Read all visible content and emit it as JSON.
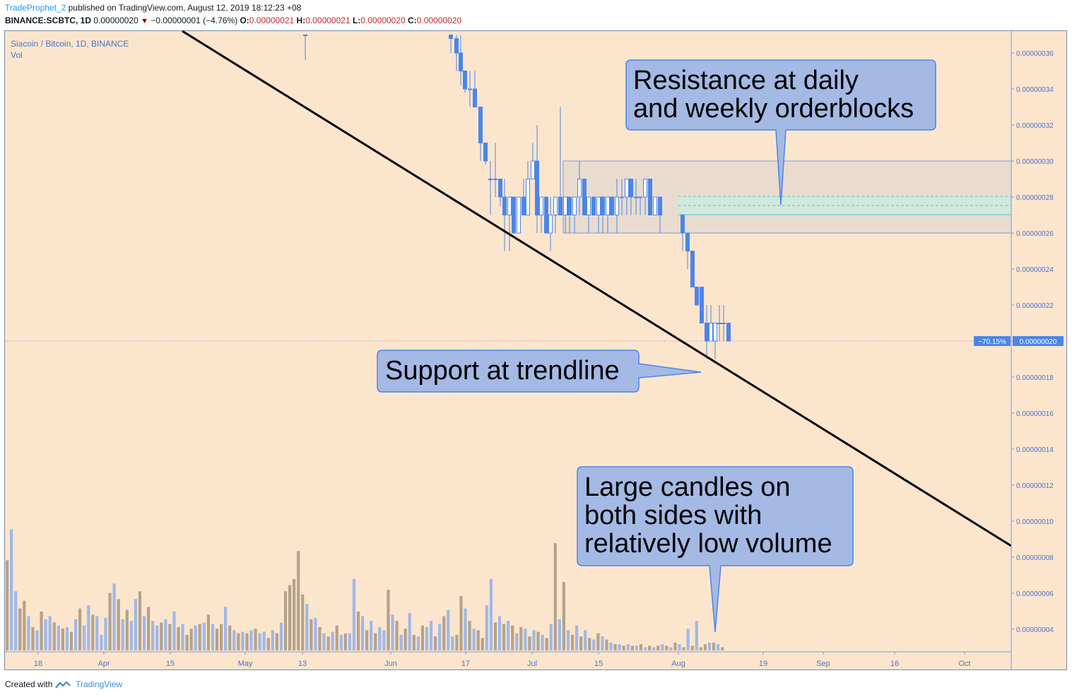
{
  "header": {
    "user": "TradeProphet_2",
    "published_text": "published on TradingView.com, August 12, 2019 18:12:23 +08",
    "symbol": "BINANCE:SCBTC, 1D",
    "last": "0.00000020",
    "change": "−0.00000001 (−4.76%)",
    "o_label": "O:",
    "o_value": "0.00000021",
    "h_label": "H:",
    "h_value": "0.00000021",
    "l_label": "L:",
    "l_value": "0.00000020",
    "c_label": "C:",
    "c_value": "0.00000020"
  },
  "legend": {
    "series": "Siacoin / Bitcoin, 1D, BINANCE",
    "volume": "Vol"
  },
  "footer": {
    "created_with": "Created with",
    "brand": "TradingView"
  },
  "colors": {
    "background": "#fce5cd",
    "bull_candle": "#ffffff",
    "bear_candle": "#4a86e8",
    "volume_up": "#9fb8e8",
    "volume_down": "#b4a28c",
    "trendline": "#000000",
    "callout_fill": "#a4b9e4",
    "callout_stroke": "#4a86e8",
    "zone_fill": "#e9dccf",
    "inner_zone_fill": "#d3e8dc"
  },
  "chart_data": {
    "type": "candlestick",
    "y_axis_ticks": [
      "0.00000036",
      "0.00000034",
      "0.00000032",
      "0.00000030",
      "0.00000028",
      "0.00000026",
      "0.00000024",
      "0.00000022",
      "0.00000020",
      "0.00000018",
      "0.00000016",
      "0.00000014",
      "0.00000012",
      "0.00000010",
      "0.00000008",
      "0.00000006",
      "0.00000004"
    ],
    "ylim": [
      3.3e-08,
      3.75e-07
    ],
    "x_axis_ticks": [
      "18",
      "Apr",
      "15",
      "May",
      "13",
      "Jun",
      "17",
      "Jul",
      "15",
      "Aug",
      "19",
      "Sep",
      "16",
      "Oct"
    ],
    "current_price_label": "0.00000020",
    "current_change_label": "−70.15%",
    "current_price": 2e-07,
    "candles": [
      {
        "d": "May 15",
        "o": 3.7e-07,
        "h": 3.7e-07,
        "l": 3.56e-07,
        "c": 3.7e-07
      },
      {
        "d": "Jun 16",
        "o": 3.7e-07,
        "h": 3.7e-07,
        "l": 3.6e-07,
        "c": 3.68e-07
      },
      {
        "d": "Jun 18",
        "o": 3.68e-07,
        "h": 3.7e-07,
        "l": 3.5e-07,
        "c": 3.6e-07
      },
      {
        "d": "Jun 19",
        "o": 3.6e-07,
        "h": 3.7e-07,
        "l": 3.42e-07,
        "c": 3.5e-07
      },
      {
        "d": "Jun 20",
        "o": 3.5e-07,
        "h": 3.5e-07,
        "l": 3.38e-07,
        "c": 3.4e-07
      },
      {
        "d": "Jun 21",
        "o": 3.4e-07,
        "h": 3.5e-07,
        "l": 3.3e-07,
        "c": 3.4e-07
      },
      {
        "d": "Jun 22",
        "o": 3.4e-07,
        "h": 3.5e-07,
        "l": 3.3e-07,
        "c": 3.3e-07
      },
      {
        "d": "Jun 23",
        "o": 3.3e-07,
        "h": 3.3e-07,
        "l": 3e-07,
        "c": 3.1e-07
      },
      {
        "d": "Jun 24",
        "o": 3.1e-07,
        "h": 3.1e-07,
        "l": 2.98e-07,
        "c": 3e-07
      },
      {
        "d": "Jun 25",
        "o": 2.9e-07,
        "h": 3e-07,
        "l": 2.7e-07,
        "c": 2.9e-07
      },
      {
        "d": "Jun 26",
        "o": 2.9e-07,
        "h": 3.1e-07,
        "l": 2.8e-07,
        "c": 2.9e-07
      },
      {
        "d": "Jun 27",
        "o": 2.9e-07,
        "h": 2.9e-07,
        "l": 2.75e-07,
        "c": 2.8e-07
      },
      {
        "d": "Jun 28",
        "o": 2.8e-07,
        "h": 2.9e-07,
        "l": 2.5e-07,
        "c": 2.7e-07
      },
      {
        "d": "Jun 29",
        "o": 2.7e-07,
        "h": 2.8e-07,
        "l": 2.5e-07,
        "c": 2.8e-07
      },
      {
        "d": "Jun 30",
        "o": 2.8e-07,
        "h": 2.8e-07,
        "l": 2.6e-07,
        "c": 2.6e-07
      },
      {
        "d": "Jul 1",
        "o": 2.6e-07,
        "h": 2.8e-07,
        "l": 2.6e-07,
        "c": 2.8e-07
      },
      {
        "d": "Jul 2",
        "o": 2.8e-07,
        "h": 2.9e-07,
        "l": 2.7e-07,
        "c": 2.7e-07
      },
      {
        "d": "Jul 3",
        "o": 2.7e-07,
        "h": 3e-07,
        "l": 2.7e-07,
        "c": 2.9e-07
      },
      {
        "d": "Jul 4",
        "o": 2.9e-07,
        "h": 3.1e-07,
        "l": 2.9e-07,
        "c": 3e-07
      },
      {
        "d": "Jul 5",
        "o": 3e-07,
        "h": 3.2e-07,
        "l": 2.6e-07,
        "c": 2.7e-07
      },
      {
        "d": "Jul 6",
        "o": 2.7e-07,
        "h": 2.8e-07,
        "l": 2.6e-07,
        "c": 2.8e-07
      },
      {
        "d": "Jul 7",
        "o": 2.8e-07,
        "h": 2.8e-07,
        "l": 2.6e-07,
        "c": 2.6e-07
      },
      {
        "d": "Jul 8",
        "o": 2.6e-07,
        "h": 2.8e-07,
        "l": 2.5e-07,
        "c": 2.7e-07
      },
      {
        "d": "Jul 9",
        "o": 2.7e-07,
        "h": 2.8e-07,
        "l": 2.6e-07,
        "c": 2.8e-07
      },
      {
        "d": "Jul 10",
        "o": 2.8e-07,
        "h": 3.3e-07,
        "l": 2.7e-07,
        "c": 2.7e-07
      },
      {
        "d": "Jul 11",
        "o": 2.7e-07,
        "h": 2.8e-07,
        "l": 2.6e-07,
        "c": 2.8e-07
      },
      {
        "d": "Jul 12",
        "o": 2.8e-07,
        "h": 2.8e-07,
        "l": 2.6e-07,
        "c": 2.7e-07
      },
      {
        "d": "Jul 13",
        "o": 2.7e-07,
        "h": 2.8e-07,
        "l": 2.6e-07,
        "c": 2.8e-07
      },
      {
        "d": "Jul 14",
        "o": 2.8e-07,
        "h": 3e-07,
        "l": 2.7e-07,
        "c": 2.9e-07
      },
      {
        "d": "Jul 15",
        "o": 2.9e-07,
        "h": 2.9e-07,
        "l": 2.7e-07,
        "c": 2.7e-07
      },
      {
        "d": "Jul 16",
        "o": 2.7e-07,
        "h": 2.8e-07,
        "l": 2.6e-07,
        "c": 2.8e-07
      },
      {
        "d": "Jul 17",
        "o": 2.8e-07,
        "h": 2.8e-07,
        "l": 2.7e-07,
        "c": 2.7e-07
      },
      {
        "d": "Jul 18",
        "o": 2.7e-07,
        "h": 2.8e-07,
        "l": 2.6e-07,
        "c": 2.8e-07
      },
      {
        "d": "Jul 19",
        "o": 2.8e-07,
        "h": 2.8e-07,
        "l": 2.6e-07,
        "c": 2.7e-07
      },
      {
        "d": "Jul 20",
        "o": 2.7e-07,
        "h": 2.8e-07,
        "l": 2.6e-07,
        "c": 2.8e-07
      },
      {
        "d": "Jul 21",
        "o": 2.8e-07,
        "h": 2.8e-07,
        "l": 2.7e-07,
        "c": 2.7e-07
      },
      {
        "d": "Jul 22",
        "o": 2.7e-07,
        "h": 2.9e-07,
        "l": 2.6e-07,
        "c": 2.8e-07
      },
      {
        "d": "Jul 23",
        "o": 2.8e-07,
        "h": 2.9e-07,
        "l": 2.7e-07,
        "c": 2.8e-07
      },
      {
        "d": "Jul 24",
        "o": 2.8e-07,
        "h": 2.9e-07,
        "l": 2.7e-07,
        "c": 2.9e-07
      },
      {
        "d": "Jul 25",
        "o": 2.9e-07,
        "h": 2.9e-07,
        "l": 2.7e-07,
        "c": 2.8e-07
      },
      {
        "d": "Jul 26",
        "o": 2.8e-07,
        "h": 2.9e-07,
        "l": 2.7e-07,
        "c": 2.8e-07
      },
      {
        "d": "Jul 27",
        "o": 2.8e-07,
        "h": 2.8e-07,
        "l": 2.7e-07,
        "c": 2.8e-07
      },
      {
        "d": "Jul 28",
        "o": 2.8e-07,
        "h": 2.9e-07,
        "l": 2.7e-07,
        "c": 2.9e-07
      },
      {
        "d": "Jul 29",
        "o": 2.9e-07,
        "h": 2.9e-07,
        "l": 2.7e-07,
        "c": 2.7e-07
      },
      {
        "d": "Jul 30",
        "o": 2.7e-07,
        "h": 2.8e-07,
        "l": 2.7e-07,
        "c": 2.8e-07
      },
      {
        "d": "Jul 31",
        "o": 2.8e-07,
        "h": 2.8e-07,
        "l": 2.6e-07,
        "c": 2.7e-07
      },
      {
        "d": "Aug 1",
        "o": 2.7e-07,
        "h": 2.7e-07,
        "l": 2.5e-07,
        "c": 2.6e-07
      },
      {
        "d": "Aug 2",
        "o": 2.6e-07,
        "h": 2.6e-07,
        "l": 2.4e-07,
        "c": 2.5e-07
      },
      {
        "d": "Aug 3",
        "o": 2.5e-07,
        "h": 2.5e-07,
        "l": 2.3e-07,
        "c": 2.3e-07
      },
      {
        "d": "Aug 4",
        "o": 2.3e-07,
        "h": 2.3e-07,
        "l": 2.2e-07,
        "c": 2.2e-07
      },
      {
        "d": "Aug 5",
        "o": 2.3e-07,
        "h": 2.3e-07,
        "l": 2.1e-07,
        "c": 2.1e-07
      },
      {
        "d": "Aug 6",
        "o": 2.1e-07,
        "h": 2.2e-07,
        "l": 1.9e-07,
        "c": 2e-07
      },
      {
        "d": "Aug 7",
        "o": 2e-07,
        "h": 2.2e-07,
        "l": 2e-07,
        "c": 2.1e-07
      },
      {
        "d": "Aug 8",
        "o": 2e-07,
        "h": 2.1e-07,
        "l": 1.9e-07,
        "c": 2.1e-07
      },
      {
        "d": "Aug 9",
        "o": 2.1e-07,
        "h": 2.2e-07,
        "l": 2e-07,
        "c": 2.1e-07
      },
      {
        "d": "Aug 10",
        "o": 2.1e-07,
        "h": 2.2e-07,
        "l": 2e-07,
        "c": 2.1e-07
      },
      {
        "d": "Aug 11",
        "o": 2.1e-07,
        "h": 2.1e-07,
        "l": 2e-07,
        "c": 2e-07
      }
    ],
    "volume_scale_max": 100,
    "volume": [
      {
        "v": 58,
        "up": false
      },
      {
        "v": 78,
        "up": true
      },
      {
        "v": 38,
        "up": true
      },
      {
        "v": 27,
        "up": false
      },
      {
        "v": 32,
        "up": false
      },
      {
        "v": 22,
        "up": true
      },
      {
        "v": 15,
        "up": false
      },
      {
        "v": 13,
        "up": true
      },
      {
        "v": 25,
        "up": false
      },
      {
        "v": 20,
        "up": true
      },
      {
        "v": 22,
        "up": true
      },
      {
        "v": 18,
        "up": false
      },
      {
        "v": 16,
        "up": true
      },
      {
        "v": 14,
        "up": false
      },
      {
        "v": 15,
        "up": true
      },
      {
        "v": 12,
        "up": false
      },
      {
        "v": 20,
        "up": true
      },
      {
        "v": 27,
        "up": false
      },
      {
        "v": 16,
        "up": true
      },
      {
        "v": 29,
        "up": true
      },
      {
        "v": 23,
        "up": false
      },
      {
        "v": 22,
        "up": true
      },
      {
        "v": 10,
        "up": true
      },
      {
        "v": 21,
        "up": true
      },
      {
        "v": 37,
        "up": false
      },
      {
        "v": 43,
        "up": true
      },
      {
        "v": 33,
        "up": false
      },
      {
        "v": 20,
        "up": true
      },
      {
        "v": 26,
        "up": false
      },
      {
        "v": 19,
        "up": true
      },
      {
        "v": 33,
        "up": true
      },
      {
        "v": 38,
        "up": false
      },
      {
        "v": 22,
        "up": true
      },
      {
        "v": 28,
        "up": false
      },
      {
        "v": 19,
        "up": true
      },
      {
        "v": 16,
        "up": true
      },
      {
        "v": 18,
        "up": false
      },
      {
        "v": 20,
        "up": true
      },
      {
        "v": 17,
        "up": false
      },
      {
        "v": 25,
        "up": true
      },
      {
        "v": 15,
        "up": false
      },
      {
        "v": 17,
        "up": true
      },
      {
        "v": 10,
        "up": false
      },
      {
        "v": 14,
        "up": false
      },
      {
        "v": 16,
        "up": true
      },
      {
        "v": 17,
        "up": false
      },
      {
        "v": 18,
        "up": true
      },
      {
        "v": 23,
        "up": false
      },
      {
        "v": 17,
        "up": true
      },
      {
        "v": 14,
        "up": false
      },
      {
        "v": 17,
        "up": false
      },
      {
        "v": 28,
        "up": true
      },
      {
        "v": 16,
        "up": false
      },
      {
        "v": 13,
        "up": true
      },
      {
        "v": 11,
        "up": false
      },
      {
        "v": 12,
        "up": true
      },
      {
        "v": 11,
        "up": false
      },
      {
        "v": 13,
        "up": true
      },
      {
        "v": 14,
        "up": false
      },
      {
        "v": 11,
        "up": true
      },
      {
        "v": 12,
        "up": true
      },
      {
        "v": 8,
        "up": false
      },
      {
        "v": 13,
        "up": true
      },
      {
        "v": 11,
        "up": false
      },
      {
        "v": 18,
        "up": true
      },
      {
        "v": 38,
        "up": false
      },
      {
        "v": 42,
        "up": false
      },
      {
        "v": 46,
        "up": false
      },
      {
        "v": 64,
        "up": false
      },
      {
        "v": 36,
        "up": false
      },
      {
        "v": 30,
        "up": true
      },
      {
        "v": 20,
        "up": false
      },
      {
        "v": 21,
        "up": true
      },
      {
        "v": 15,
        "up": false
      },
      {
        "v": 11,
        "up": true
      },
      {
        "v": 9,
        "up": false
      },
      {
        "v": 12,
        "up": true
      },
      {
        "v": 16,
        "up": false
      },
      {
        "v": 10,
        "up": true
      },
      {
        "v": 11,
        "up": false
      },
      {
        "v": 11,
        "up": true
      },
      {
        "v": 46,
        "up": true
      },
      {
        "v": 25,
        "up": false
      },
      {
        "v": 22,
        "up": true
      },
      {
        "v": 13,
        "up": false
      },
      {
        "v": 19,
        "up": true
      },
      {
        "v": 11,
        "up": false
      },
      {
        "v": 15,
        "up": true
      },
      {
        "v": 13,
        "up": true
      },
      {
        "v": 39,
        "up": false
      },
      {
        "v": 23,
        "up": true
      },
      {
        "v": 19,
        "up": false
      },
      {
        "v": 10,
        "up": true
      },
      {
        "v": 14,
        "up": false
      },
      {
        "v": 24,
        "up": true
      },
      {
        "v": 10,
        "up": false
      },
      {
        "v": 9,
        "up": true
      },
      {
        "v": 16,
        "up": false
      },
      {
        "v": 15,
        "up": true
      },
      {
        "v": 19,
        "up": true
      },
      {
        "v": 9,
        "up": false
      },
      {
        "v": 17,
        "up": true
      },
      {
        "v": 22,
        "up": false
      },
      {
        "v": 26,
        "up": true
      },
      {
        "v": 9,
        "up": true
      },
      {
        "v": 10,
        "up": false
      },
      {
        "v": 35,
        "up": false
      },
      {
        "v": 27,
        "up": true
      },
      {
        "v": 19,
        "up": false
      },
      {
        "v": 14,
        "up": true
      },
      {
        "v": 13,
        "up": false
      },
      {
        "v": 8,
        "up": false
      },
      {
        "v": 29,
        "up": true
      },
      {
        "v": 46,
        "up": true
      },
      {
        "v": 18,
        "up": false
      },
      {
        "v": 22,
        "up": true
      },
      {
        "v": 17,
        "up": false
      },
      {
        "v": 19,
        "up": true
      },
      {
        "v": 16,
        "up": false
      },
      {
        "v": 11,
        "up": true
      },
      {
        "v": 15,
        "up": false
      },
      {
        "v": 14,
        "up": true
      },
      {
        "v": 9,
        "up": false
      },
      {
        "v": 13,
        "up": true
      },
      {
        "v": 12,
        "up": false
      },
      {
        "v": 10,
        "up": true
      },
      {
        "v": 8,
        "up": false
      },
      {
        "v": 17,
        "up": true
      },
      {
        "v": 69,
        "up": false
      },
      {
        "v": 20,
        "up": true
      },
      {
        "v": 44,
        "up": false
      },
      {
        "v": 13,
        "up": true
      },
      {
        "v": 10,
        "up": false
      },
      {
        "v": 16,
        "up": true
      },
      {
        "v": 9,
        "up": false
      },
      {
        "v": 13,
        "up": true
      },
      {
        "v": 8,
        "up": false
      },
      {
        "v": 7,
        "up": true
      },
      {
        "v": 11,
        "up": false
      },
      {
        "v": 9,
        "up": true
      },
      {
        "v": 7,
        "up": false
      },
      {
        "v": 5,
        "up": true
      },
      {
        "v": 4,
        "up": false
      },
      {
        "v": 4,
        "up": true
      },
      {
        "v": 3,
        "up": false
      },
      {
        "v": 4,
        "up": true
      },
      {
        "v": 3,
        "up": false
      },
      {
        "v": 3,
        "up": true
      },
      {
        "v": 4,
        "up": false
      },
      {
        "v": 2,
        "up": true
      },
      {
        "v": 3,
        "up": false
      },
      {
        "v": 2,
        "up": true
      },
      {
        "v": 3,
        "up": false
      },
      {
        "v": 4,
        "up": true
      },
      {
        "v": 3,
        "up": false
      },
      {
        "v": 2,
        "up": true
      },
      {
        "v": 5,
        "up": false
      },
      {
        "v": 4,
        "up": true
      },
      {
        "v": 2,
        "up": false
      },
      {
        "v": 14,
        "up": true
      },
      {
        "v": 3,
        "up": false
      },
      {
        "v": 19,
        "up": true
      },
      {
        "v": 2,
        "up": false
      },
      {
        "v": 4,
        "up": false
      },
      {
        "v": 5,
        "up": true
      },
      {
        "v": 5,
        "up": false
      },
      {
        "v": 4,
        "up": true
      },
      {
        "v": 2,
        "up": false
      }
    ]
  },
  "annotations": {
    "resistance_line1": "Resistance at daily",
    "resistance_line2": "and weekly orderblocks",
    "support": "Support at trendline",
    "candles_line1": "Large candles on",
    "candles_line2": "both sides with",
    "candles_line3": "relatively low volume"
  }
}
